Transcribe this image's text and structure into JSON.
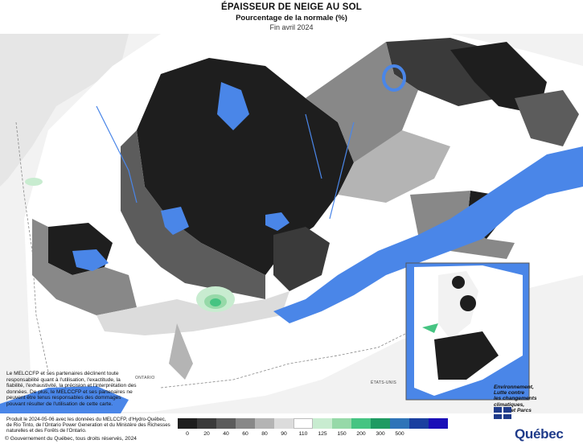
{
  "header": {
    "title": "ÉPAISSEUR DE NEIGE AU SOL",
    "subtitle": "Pourcentage de la normale (%)",
    "period": "Fin avril 2024"
  },
  "map": {
    "labels": {
      "ontario": "ONTARIO",
      "us": "ÉTATS-UNIS"
    }
  },
  "legend": {
    "colors": [
      "#1e1e1e",
      "#3a3a3a",
      "#5c5c5c",
      "#888888",
      "#b4b4b4",
      "#dcdcdc",
      "#ffffff",
      "#c8ecd0",
      "#96d9a8",
      "#46c482",
      "#1f9a62",
      "#2f74b8",
      "#1a3fa0",
      "#1a0fb8"
    ],
    "ticks": [
      "0",
      "20",
      "40",
      "60",
      "80",
      "90",
      "110",
      "125",
      "150",
      "200",
      "300",
      "500"
    ]
  },
  "disclaimer": "Le MELCCFP et ses partenaires déclinent toute responsabilité quant à l'utilisation, l'exactitude, la fiabilité, l'exhaustivité, la précision et l'interprétation des données. De plus, le MELCCFP et ses partenaires ne peuvent être tenus responsables des dommages pouvant résulter de l'utilisation de cette carte.",
  "footer_note": "Produit le 2024-05-06 avec les données du MELCCFP, d'Hydro-Québec, de Rio Tinto, de l'Ontario Power Generation et du Ministère des Richesses naturelles et des Forêts de l'Ontario.",
  "copyright": "© Gouvernement du Québec, tous droits réservés, 2024",
  "ministry": {
    "line1": "Environnement,",
    "line2": "Lutte contre",
    "line3": "les changements",
    "line4": "climatiques,",
    "line5": "Faune et Parcs"
  },
  "logo_text": "Québec"
}
